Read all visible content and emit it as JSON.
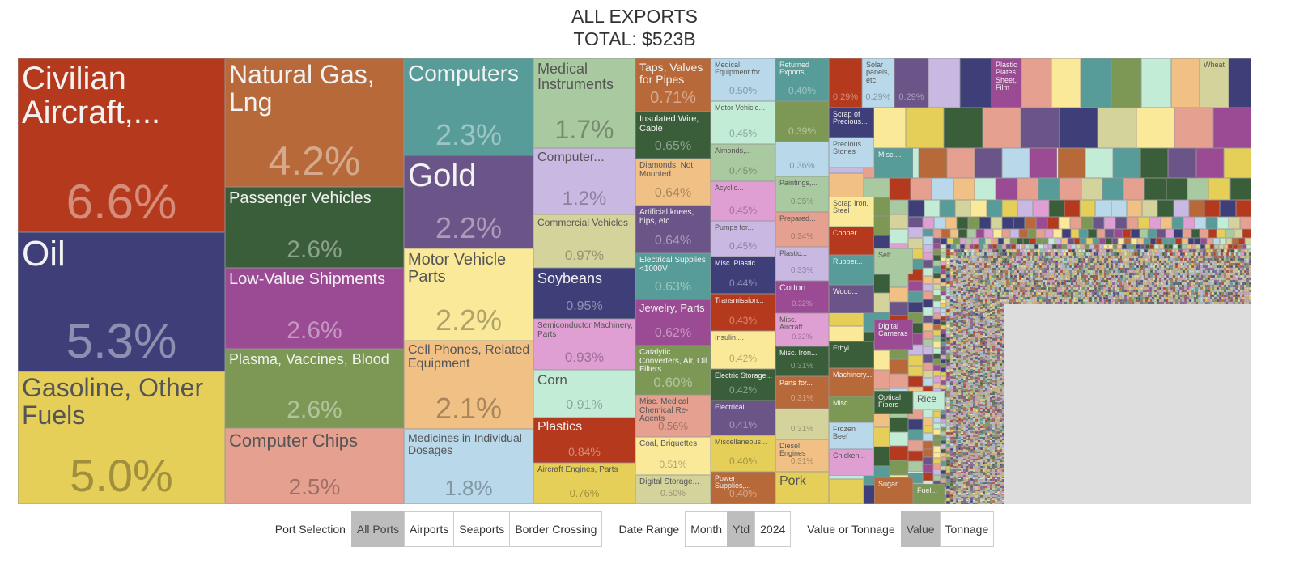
{
  "chart_data": {
    "type": "treemap",
    "title": "ALL EXPORTS",
    "subtitle": "TOTAL: $523B",
    "unit": "percent of total export value",
    "items": [
      {
        "name": "Civilian Aircraft,...",
        "pct": "6.6%",
        "value": 6.6,
        "color": "#b5391c"
      },
      {
        "name": "Oil",
        "pct": "5.3%",
        "value": 5.3,
        "color": "#3e3f78"
      },
      {
        "name": "Gasoline, Other Fuels",
        "pct": "5.0%",
        "value": 5.0,
        "color": "#e5cf59"
      },
      {
        "name": "Natural Gas, Lng",
        "pct": "4.2%",
        "value": 4.2,
        "color": "#b8693a"
      },
      {
        "name": "Passenger Vehicles",
        "pct": "2.6%",
        "value": 2.6,
        "color": "#3a5e3a"
      },
      {
        "name": "Low-Value Shipments",
        "pct": "2.6%",
        "value": 2.6,
        "color": "#9b4b93"
      },
      {
        "name": "Plasma, Vaccines, Blood",
        "pct": "2.6%",
        "value": 2.6,
        "color": "#7d9855"
      },
      {
        "name": "Computer Chips",
        "pct": "2.5%",
        "value": 2.5,
        "color": "#e5a090"
      },
      {
        "name": "Computers",
        "pct": "2.3%",
        "value": 2.3,
        "color": "#579c98"
      },
      {
        "name": "Gold",
        "pct": "2.2%",
        "value": 2.2,
        "color": "#6b5487"
      },
      {
        "name": "Motor Vehicle Parts",
        "pct": "2.2%",
        "value": 2.2,
        "color": "#fbe99a"
      },
      {
        "name": "Cell Phones, Related Equipment",
        "pct": "2.1%",
        "value": 2.1,
        "color": "#f1c085"
      },
      {
        "name": "Medicines in Individual Dosages",
        "pct": "1.8%",
        "value": 1.8,
        "color": "#b9d8ea"
      },
      {
        "name": "Medical Instruments",
        "pct": "1.7%",
        "value": 1.7,
        "color": "#a9c9a0"
      },
      {
        "name": "Computer...",
        "pct": "1.2%",
        "value": 1.2,
        "color": "#c9b8e2"
      },
      {
        "name": "Commercial Vehicles",
        "pct": "0.97%",
        "value": 0.97,
        "color": "#d5d39c"
      },
      {
        "name": "Soybeans",
        "pct": "0.95%",
        "value": 0.95,
        "color": "#3e3f78"
      },
      {
        "name": "Semiconductor Machinery, Parts",
        "pct": "0.93%",
        "value": 0.93,
        "color": "#df9fd2"
      },
      {
        "name": "Corn",
        "pct": "0.91%",
        "value": 0.91,
        "color": "#c3ecd6"
      },
      {
        "name": "Plastics",
        "pct": "0.84%",
        "value": 0.84,
        "color": "#b5391c"
      },
      {
        "name": "Aircraft Engines, Parts",
        "pct": "0.76%",
        "value": 0.76,
        "color": "#e5cf59"
      },
      {
        "name": "Taps, Valves for Pipes",
        "pct": "0.71%",
        "value": 0.71,
        "color": "#b8693a"
      },
      {
        "name": "Insulated Wire, Cable",
        "pct": "0.65%",
        "value": 0.65,
        "color": "#3a5e3a"
      },
      {
        "name": "Diamonds, Not Mounted",
        "pct": "0.64%",
        "value": 0.64,
        "color": "#f1c085"
      },
      {
        "name": "Artificial knees, hips, etc.",
        "pct": "0.64%",
        "value": 0.64,
        "color": "#6b5487"
      },
      {
        "name": "Electrical Supplies <1000V",
        "pct": "0.63%",
        "value": 0.63,
        "color": "#579c98"
      },
      {
        "name": "Jewelry, Parts",
        "pct": "0.62%",
        "value": 0.62,
        "color": "#9b4b93"
      },
      {
        "name": "Catalytic Converters, Air, Oil Filters",
        "pct": "0.60%",
        "value": 0.6,
        "color": "#7d9855"
      },
      {
        "name": "Misc. Medical Chemical Re-Agents",
        "pct": "0.56%",
        "value": 0.56,
        "color": "#e5a090"
      },
      {
        "name": "Coal, Briquettes",
        "pct": "0.51%",
        "value": 0.51,
        "color": "#fbe99a"
      },
      {
        "name": "Digital Storage...",
        "pct": "0.50%",
        "value": 0.5,
        "color": "#d5d39c"
      },
      {
        "name": "Medical Equipment for...",
        "pct": "0.50%",
        "value": 0.5,
        "color": "#b9d8ea"
      },
      {
        "name": "Motor Vehicle...",
        "pct": "0.45%",
        "value": 0.45,
        "color": "#c3ecd6"
      },
      {
        "name": "Almonds,...",
        "pct": "0.45%",
        "value": 0.45,
        "color": "#a9c9a0"
      },
      {
        "name": "Acyclic...",
        "pct": "0.45%",
        "value": 0.45,
        "color": "#df9fd2"
      },
      {
        "name": "Pumps for...",
        "pct": "0.45%",
        "value": 0.45,
        "color": "#c9b8e2"
      },
      {
        "name": "Misc. Plastic...",
        "pct": "0.44%",
        "value": 0.44,
        "color": "#3e3f78"
      },
      {
        "name": "Transmission...",
        "pct": "0.43%",
        "value": 0.43,
        "color": "#b5391c"
      },
      {
        "name": "Insulin,...",
        "pct": "0.42%",
        "value": 0.42,
        "color": "#fbe99a"
      },
      {
        "name": "Electric Storage...",
        "pct": "0.42%",
        "value": 0.42,
        "color": "#3a5e3a"
      },
      {
        "name": "Electrical...",
        "pct": "0.41%",
        "value": 0.41,
        "color": "#6b5487"
      },
      {
        "name": "Miscellaneous...",
        "pct": "0.40%",
        "value": 0.4,
        "color": "#e5cf59"
      },
      {
        "name": "Power Supplies,...",
        "pct": "0.40%",
        "value": 0.4,
        "color": "#b8693a"
      },
      {
        "name": "Returned Exports,...",
        "pct": "0.40%",
        "value": 0.4,
        "color": "#579c98"
      },
      {
        "pct": "0.39%",
        "value": 0.39,
        "color": "#7d9855"
      },
      {
        "pct": "0.36%",
        "value": 0.36,
        "color": "#b9d8ea"
      },
      {
        "name": "Paintings,...",
        "pct": "0.35%",
        "value": 0.35,
        "color": "#a9c9a0"
      },
      {
        "name": "Prepared...",
        "pct": "0.34%",
        "value": 0.34,
        "color": "#e5a090"
      },
      {
        "name": "Plastic...",
        "pct": "0.33%",
        "value": 0.33,
        "color": "#c9b8e2"
      },
      {
        "name": "Cotton",
        "pct": "0.32%",
        "value": 0.32,
        "color": "#9b4b93"
      },
      {
        "name": "Misc. Aircraft...",
        "pct": "0.32%",
        "value": 0.32,
        "color": "#df9fd2"
      },
      {
        "name": "Misc. Iron...",
        "pct": "0.31%",
        "value": 0.31,
        "color": "#3a5e3a"
      },
      {
        "name": "Parts for...",
        "pct": "0.31%",
        "value": 0.31,
        "color": "#b8693a"
      },
      {
        "pct": "0.31%",
        "value": 0.31,
        "color": "#d5d39c"
      },
      {
        "name": "Diesel Engines",
        "pct": "0.31%",
        "value": 0.31,
        "color": "#f1c085"
      },
      {
        "name": "Pork",
        "color": "#e5cf59"
      },
      {
        "pct": "0.29%",
        "value": 0.29,
        "color": "#b5391c"
      },
      {
        "name": "Solar panels, etc.",
        "pct": "0.29%",
        "value": 0.29,
        "color": "#b9d8ea"
      },
      {
        "pct": "0.29%",
        "value": 0.29,
        "color": "#6b5487"
      },
      {
        "color": "#c9b8e2"
      },
      {
        "color": "#3e3f78"
      },
      {
        "name": "Plastic Plates, Sheet, Film",
        "color": "#9b4b93"
      },
      {
        "color": "#e5a090"
      },
      {
        "color": "#fbe99a"
      },
      {
        "color": "#579c98"
      },
      {
        "color": "#7d9855"
      },
      {
        "color": "#c3ecd6"
      },
      {
        "color": "#f1c085"
      },
      {
        "name": "Wheat",
        "color": "#d5d39c"
      },
      {
        "color": "#3e3f78"
      },
      {
        "name": "Scrap of Precious...",
        "color": "#3e3f78"
      },
      {
        "name": "Precious Stones",
        "color": "#b9d8ea"
      },
      {
        "name": "Scrap Iron, Steel",
        "color": "#fbe99a"
      },
      {
        "name": "Copper...",
        "color": "#b5391c"
      },
      {
        "name": "Rubber...",
        "color": "#579c98"
      },
      {
        "name": "Wood...",
        "color": "#6b5487"
      },
      {
        "name": "Ethyl...",
        "color": "#3a5e3a"
      },
      {
        "name": "Machinery...",
        "color": "#b8693a"
      },
      {
        "name": "Misc....",
        "color": "#7d9855"
      },
      {
        "name": "Frozen Beef",
        "color": "#b9d8ea"
      },
      {
        "name": "Chicken...",
        "color": "#df9fd2"
      },
      {
        "name": "Misc....",
        "color": "#579c98"
      },
      {
        "name": "Self...",
        "color": "#a9c9a0"
      },
      {
        "name": "Digital Cameras",
        "color": "#9b4b93"
      },
      {
        "name": "Optical Fibers",
        "color": "#3a5e3a"
      },
      {
        "name": "Sugar...",
        "color": "#b8693a"
      },
      {
        "name": "Rice",
        "color": "#c3ecd6"
      },
      {
        "name": "Fuel...",
        "color": "#7d9855"
      }
    ],
    "palette": [
      "#b5391c",
      "#3e3f78",
      "#e5cf59",
      "#b8693a",
      "#3a5e3a",
      "#9b4b93",
      "#7d9855",
      "#e5a090",
      "#579c98",
      "#6b5487",
      "#fbe99a",
      "#f1c085",
      "#b9d8ea",
      "#a9c9a0",
      "#c9b8e2",
      "#d5d39c",
      "#df9fd2",
      "#c3ecd6"
    ]
  },
  "controls": {
    "port": {
      "label": "Port Selection",
      "options": [
        "All Ports",
        "Airports",
        "Seaports",
        "Border Crossing"
      ],
      "selected": "All Ports"
    },
    "date": {
      "label": "Date Range",
      "options": [
        "Month",
        "Ytd",
        "2024"
      ],
      "selected": "Ytd"
    },
    "measure": {
      "label": "Value or Tonnage",
      "options": [
        "Value",
        "Tonnage"
      ],
      "selected": "Value"
    }
  }
}
